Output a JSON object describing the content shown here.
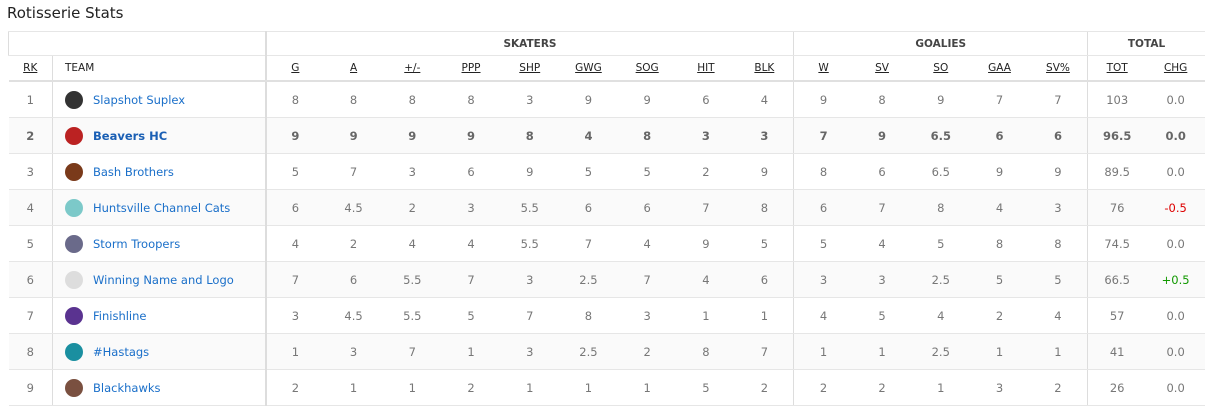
{
  "title": "Rotisserie Stats",
  "groups": {
    "skaters": "SKATERS",
    "goalies": "GOALIES",
    "total": "TOTAL"
  },
  "columns": {
    "rk": "RK",
    "team": "TEAM",
    "skaters": [
      "G",
      "A",
      "+/-",
      "PPP",
      "SHP",
      "GWG",
      "SOG",
      "HIT",
      "BLK"
    ],
    "goalies": [
      "W",
      "SV",
      "SO",
      "GAA",
      "SV%"
    ],
    "total": [
      "TOT",
      "CHG"
    ]
  },
  "rows": [
    {
      "rk": "1",
      "team": "Slapshot Suplex",
      "logo": "#333",
      "skaters": [
        "8",
        "8",
        "8",
        "8",
        "3",
        "9",
        "9",
        "6",
        "4"
      ],
      "goalies": [
        "9",
        "8",
        "9",
        "7",
        "7"
      ],
      "tot": "103",
      "chg": "0.0"
    },
    {
      "rk": "2",
      "team": "Beavers HC",
      "logo": "#b22",
      "highlight": true,
      "skaters": [
        "9",
        "9",
        "9",
        "9",
        "8",
        "4",
        "8",
        "3",
        "3"
      ],
      "goalies": [
        "7",
        "9",
        "6.5",
        "6",
        "6"
      ],
      "tot": "96.5",
      "chg": "0.0"
    },
    {
      "rk": "3",
      "team": "Bash Brothers",
      "logo": "#7a3a1a",
      "skaters": [
        "5",
        "7",
        "3",
        "6",
        "9",
        "5",
        "5",
        "2",
        "9"
      ],
      "goalies": [
        "8",
        "6",
        "6.5",
        "9",
        "9"
      ],
      "tot": "89.5",
      "chg": "0.0"
    },
    {
      "rk": "4",
      "team": "Huntsville Channel Cats",
      "logo": "#7cc9c9",
      "skaters": [
        "6",
        "4.5",
        "2",
        "3",
        "5.5",
        "6",
        "6",
        "7",
        "8"
      ],
      "goalies": [
        "6",
        "7",
        "8",
        "4",
        "3"
      ],
      "tot": "76",
      "chg": "-0.5"
    },
    {
      "rk": "5",
      "team": "Storm Troopers",
      "logo": "#6a6a8a",
      "skaters": [
        "4",
        "2",
        "4",
        "4",
        "5.5",
        "7",
        "4",
        "9",
        "5"
      ],
      "goalies": [
        "5",
        "4",
        "5",
        "8",
        "8"
      ],
      "tot": "74.5",
      "chg": "0.0"
    },
    {
      "rk": "6",
      "team": "Winning Name and Logo",
      "logo": "#ddd",
      "skaters": [
        "7",
        "6",
        "5.5",
        "7",
        "3",
        "2.5",
        "7",
        "4",
        "6"
      ],
      "goalies": [
        "3",
        "3",
        "2.5",
        "5",
        "5"
      ],
      "tot": "66.5",
      "chg": "+0.5"
    },
    {
      "rk": "7",
      "team": "Finishline",
      "logo": "#5a3390",
      "skaters": [
        "3",
        "4.5",
        "5.5",
        "5",
        "7",
        "8",
        "3",
        "1",
        "1"
      ],
      "goalies": [
        "4",
        "5",
        "4",
        "2",
        "4"
      ],
      "tot": "57",
      "chg": "0.0"
    },
    {
      "rk": "8",
      "team": "#Hastags",
      "logo": "#1a8fa0",
      "skaters": [
        "1",
        "3",
        "7",
        "1",
        "3",
        "2.5",
        "2",
        "8",
        "7"
      ],
      "goalies": [
        "1",
        "1",
        "2.5",
        "1",
        "1"
      ],
      "tot": "41",
      "chg": "0.0"
    },
    {
      "rk": "9",
      "team": "Blackhawks",
      "logo": "#7a5040",
      "skaters": [
        "2",
        "1",
        "1",
        "2",
        "1",
        "1",
        "1",
        "5",
        "2"
      ],
      "goalies": [
        "2",
        "2",
        "1",
        "3",
        "2"
      ],
      "tot": "26",
      "chg": "0.0"
    }
  ]
}
